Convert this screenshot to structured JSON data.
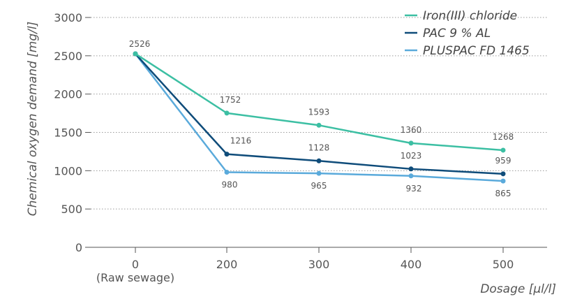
{
  "chart_data": {
    "type": "line",
    "ylabel": "Chemical oxygen demand [mg/l]",
    "xlabel": "Dosage [µl/l]",
    "x_categories": [
      "0",
      "200",
      "300",
      "400",
      "500"
    ],
    "x_sublabel_first": "(Raw sewage)",
    "yticks": [
      "0",
      "500",
      "1000",
      "1500",
      "2000",
      "2500",
      "3000"
    ],
    "ylim": [
      0,
      3000
    ],
    "grid": "horizontal dotted",
    "legend_position": "top-right",
    "series": [
      {
        "name": "Iron(III) chloride",
        "color": "#3cbfa3",
        "values": [
          2526,
          1752,
          1593,
          1360,
          1268
        ],
        "labels": [
          "2526",
          "1752",
          "1593",
          "1360",
          "1268"
        ]
      },
      {
        "name": "PAC 9 % AL",
        "color": "#0f4c7a",
        "values": [
          2526,
          1216,
          1128,
          1023,
          959
        ],
        "labels": [
          "",
          "1216",
          "1128",
          "1023",
          "959"
        ]
      },
      {
        "name": "PLUSPAC FD 1465",
        "color": "#5aaadb",
        "values": [
          2526,
          980,
          965,
          932,
          865
        ],
        "labels": [
          "",
          "980",
          "965",
          "932",
          "865"
        ]
      }
    ]
  }
}
